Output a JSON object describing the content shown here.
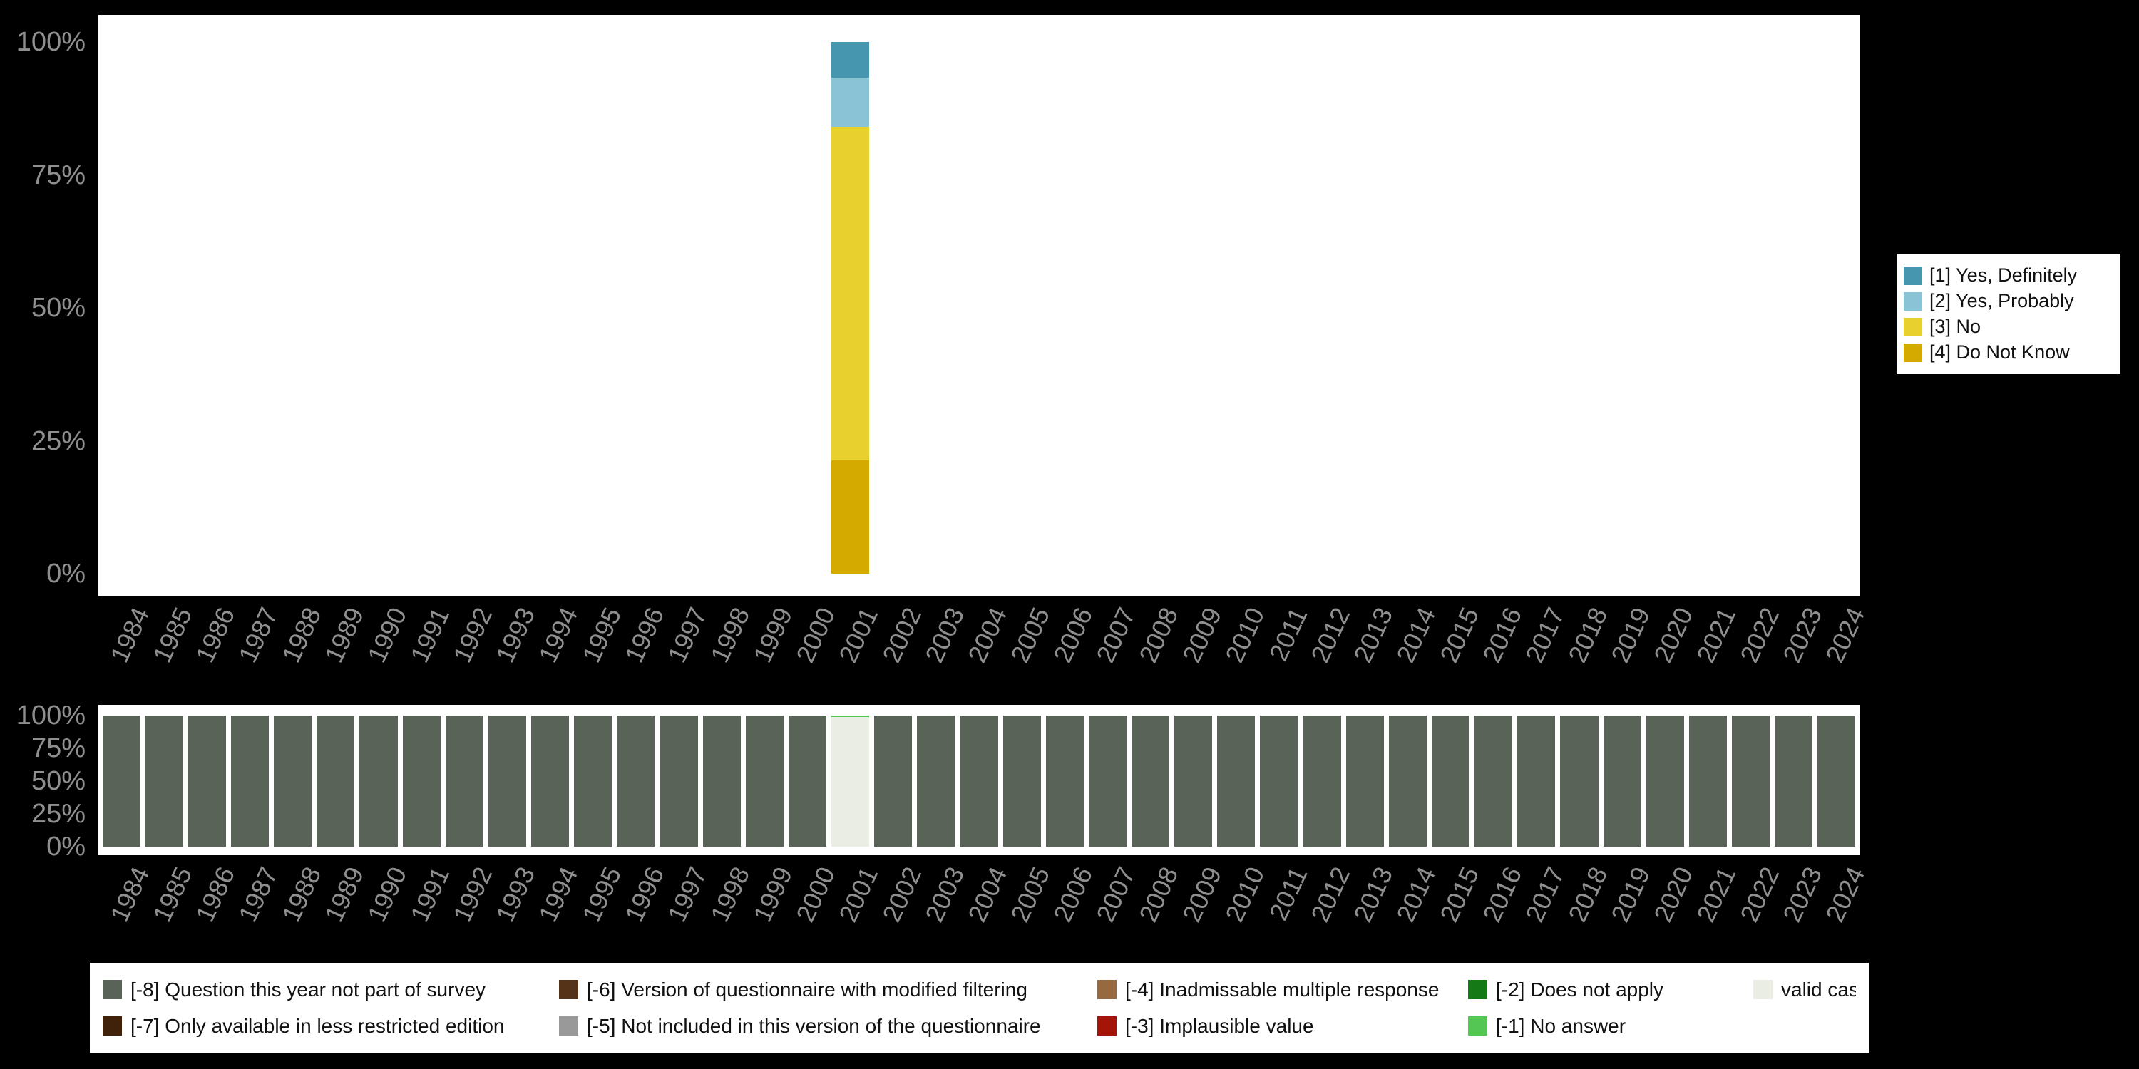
{
  "page": {
    "background": "#000000"
  },
  "axes": {
    "years": [
      "1984",
      "1985",
      "1986",
      "1987",
      "1988",
      "1989",
      "1990",
      "1991",
      "1992",
      "1993",
      "1994",
      "1995",
      "1996",
      "1997",
      "1998",
      "1999",
      "2000",
      "2001",
      "2002",
      "2003",
      "2004",
      "2005",
      "2006",
      "2007",
      "2008",
      "2009",
      "2010",
      "2011",
      "2012",
      "2013",
      "2014",
      "2015",
      "2016",
      "2017",
      "2018",
      "2019",
      "2020",
      "2021",
      "2022",
      "2023",
      "2024"
    ],
    "y_ticks": [
      "100%",
      "75%",
      "50%",
      "25%",
      "0%"
    ]
  },
  "chart_data": [
    {
      "id": "responses",
      "type": "bar",
      "subtype": "stacked-percent",
      "title": "",
      "xlabel": "",
      "ylabel": "",
      "ylim": [
        0,
        100
      ],
      "legend_position": "right",
      "grid": false,
      "series": [
        {
          "name": "[1] Yes, Definitely",
          "color": "#4596ae",
          "values_by_year": {
            "2001": 6.7
          }
        },
        {
          "name": "[2] Yes, Probably",
          "color": "#8ac2d6",
          "values_by_year": {
            "2001": 9.2
          }
        },
        {
          "name": "[3] No",
          "color": "#e8d02f",
          "values_by_year": {
            "2001": 62.8
          }
        },
        {
          "name": "[4] Do Not Know",
          "color": "#d4a900",
          "values_by_year": {
            "2001": 21.3
          }
        }
      ]
    },
    {
      "id": "missing-values",
      "type": "bar",
      "subtype": "stacked-percent",
      "title": "",
      "xlabel": "",
      "ylabel": "",
      "ylim": [
        0,
        100
      ],
      "legend_position": "bottom",
      "grid": false,
      "series": [
        {
          "name": "[-8] Question this year not part of survey",
          "color": "#5a6357",
          "values_by_year": {
            "default": 100,
            "2001": 0
          }
        },
        {
          "name": "[-1] No answer",
          "color": "#53c653",
          "values_by_year": {
            "2001": 1
          }
        },
        {
          "name": "valid cases",
          "color": "#e9ede4",
          "values_by_year": {
            "2001": 99
          }
        }
      ]
    }
  ],
  "legend_top": {
    "items": [
      {
        "label": "[1] Yes, Definitely",
        "color": "#4596ae"
      },
      {
        "label": "[2] Yes, Probably",
        "color": "#8ac2d6"
      },
      {
        "label": "[3] No",
        "color": "#e8d02f"
      },
      {
        "label": "[4] Do Not Know",
        "color": "#d4a900"
      }
    ]
  },
  "legend_bottom": {
    "items": [
      {
        "label": "[-8] Question this year not part of survey",
        "color": "#5a6357"
      },
      {
        "label": "[-6] Version of questionnaire with modified filtering",
        "color": "#553318"
      },
      {
        "label": "[-4] Inadmissable multiple response",
        "color": "#96693f"
      },
      {
        "label": "[-2] Does not apply",
        "color": "#157a15"
      },
      {
        "label": "valid cases",
        "color": "#e9ede4"
      },
      {
        "label": "[-7] Only available in less restricted edition",
        "color": "#40220a"
      },
      {
        "label": "[-5] Not included in this version of the questionnaire",
        "color": "#999999"
      },
      {
        "label": "[-3] Implausible value",
        "color": "#a51408"
      },
      {
        "label": "[-1] No answer",
        "color": "#53c653"
      }
    ]
  }
}
